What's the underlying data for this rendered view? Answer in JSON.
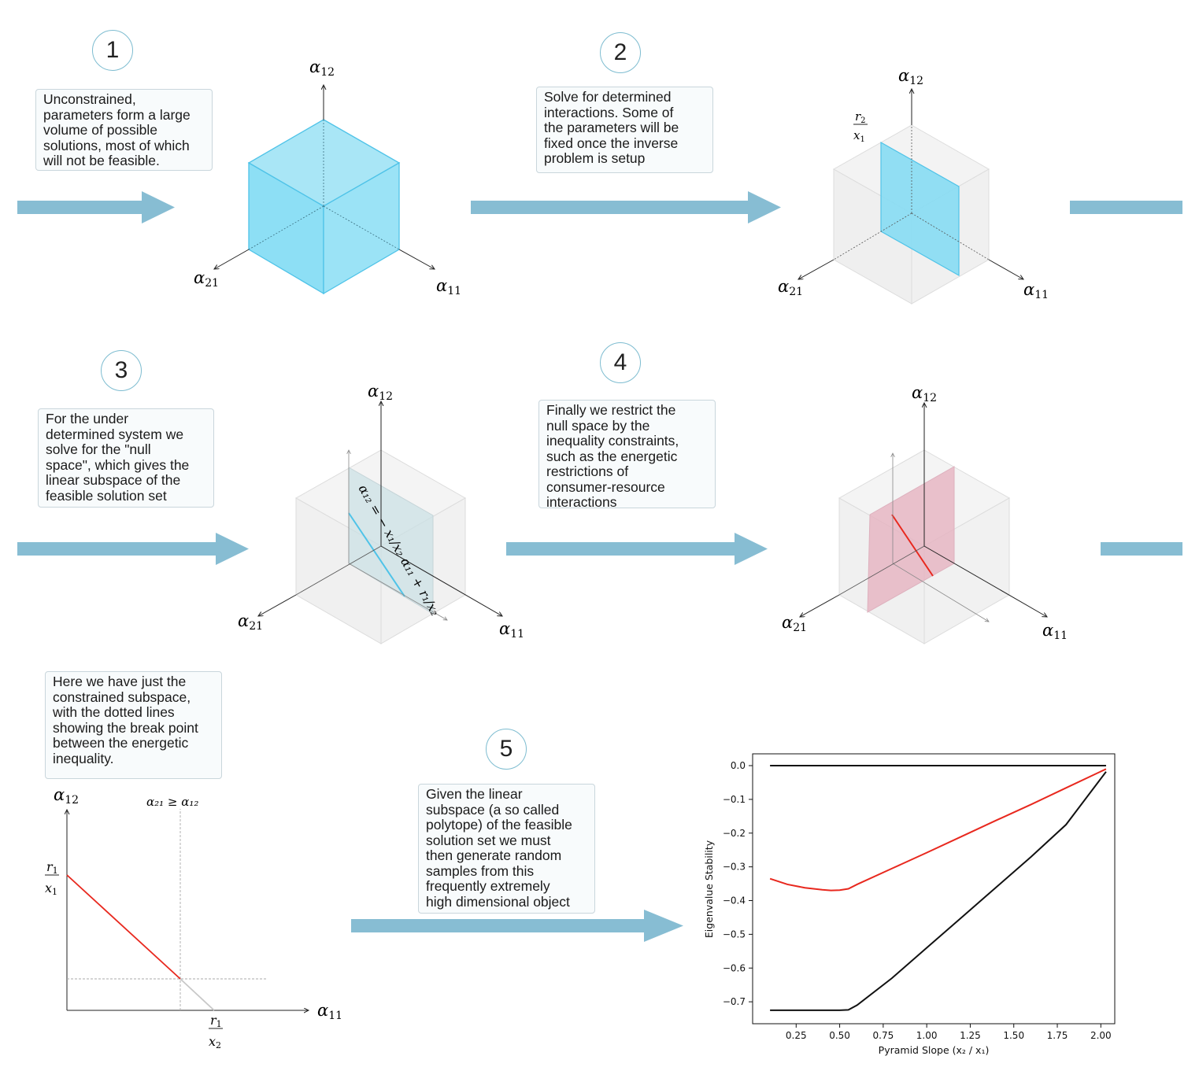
{
  "steps": {
    "s1": {
      "number": "1",
      "text": "Unconstrained,\nparameters form a large\nvolume of possible\nsolutions, most of which\nwill not be feasible."
    },
    "s2": {
      "number": "2",
      "text": "Solve for determined\ninteractions. Some of\nthe parameters will be\nfixed once the inverse\nproblem is setup"
    },
    "s3": {
      "number": "3",
      "text": "For the under\ndetermined system we\nsolve for the \"null\nspace\", which gives the\nlinear subspace of the\nfeasible solution set"
    },
    "s4": {
      "number": "4",
      "text": "Finally we restrict the\nnull space by the\ninequality constraints,\nsuch as the energetic\nrestrictions of\nconsumer-resource\ninteractions"
    },
    "s5": {
      "number": "5",
      "text": "Given the linear\nsubspace (a so called\npolytope) of the feasible\nsolution set we must\nthen generate random\nsamples from this\nfrequently extremely\nhigh dimensional object"
    },
    "s6": {
      "text": "Here we have just the\nconstrained subspace,\nwith the dotted lines\nshowing the break point\nbetween the energetic\ninequality."
    }
  },
  "math": {
    "alpha": "α",
    "sub12": "12",
    "sub21": "21",
    "sub11": "11",
    "r1": "r",
    "r2": "r",
    "x1": "x",
    "x2": "x",
    "sub1": "1",
    "sub2": "2",
    "ineq": "α₂₁ ≥ α₁₂",
    "nullspace_eq": "α₁₂ = − x₁/x₂ α₁₁ + r₁/x₂"
  },
  "colors": {
    "arrow": "#87bdd3",
    "cube_fill": "#7fd8f2",
    "cube_edge": "#4fc3e8",
    "plane_pink": "#e8b8c4",
    "red": "#e8281e",
    "black": "#111111"
  },
  "chart_data": {
    "type": "line",
    "xlabel": "Pyramid Slope (x₂ / x₁)",
    "ylabel": "Eigenvalue Stability",
    "xlim": [
      0.0,
      2.08
    ],
    "ylim": [
      -0.765,
      0.035
    ],
    "xticks": [
      "0.25",
      "0.50",
      "0.75",
      "1.00",
      "1.25",
      "1.50",
      "1.75",
      "2.00"
    ],
    "yticks": [
      "0.0",
      "−0.1",
      "−0.2",
      "−0.3",
      "−0.4",
      "−0.5",
      "−0.6",
      "−0.7"
    ],
    "series": [
      {
        "color": "#111111",
        "x": [
          0.1,
          2.03
        ],
        "y": [
          0.0,
          0.0
        ]
      },
      {
        "color": "#e8281e",
        "x": [
          0.1,
          0.2,
          0.3,
          0.4,
          0.45,
          0.5,
          0.55,
          0.6,
          0.8,
          1.0,
          1.2,
          1.4,
          1.6,
          1.8,
          2.03
        ],
        "y": [
          -0.335,
          -0.352,
          -0.362,
          -0.368,
          -0.37,
          -0.369,
          -0.365,
          -0.352,
          -0.305,
          -0.258,
          -0.21,
          -0.162,
          -0.115,
          -0.066,
          -0.01
        ]
      },
      {
        "color": "#111111",
        "x": [
          0.1,
          0.3,
          0.5,
          0.55,
          0.6,
          0.8,
          1.0,
          1.2,
          1.4,
          1.6,
          1.8,
          2.03
        ],
        "y": [
          -0.725,
          -0.725,
          -0.725,
          -0.724,
          -0.71,
          -0.63,
          -0.54,
          -0.45,
          -0.36,
          -0.27,
          -0.175,
          -0.018
        ]
      }
    ]
  }
}
